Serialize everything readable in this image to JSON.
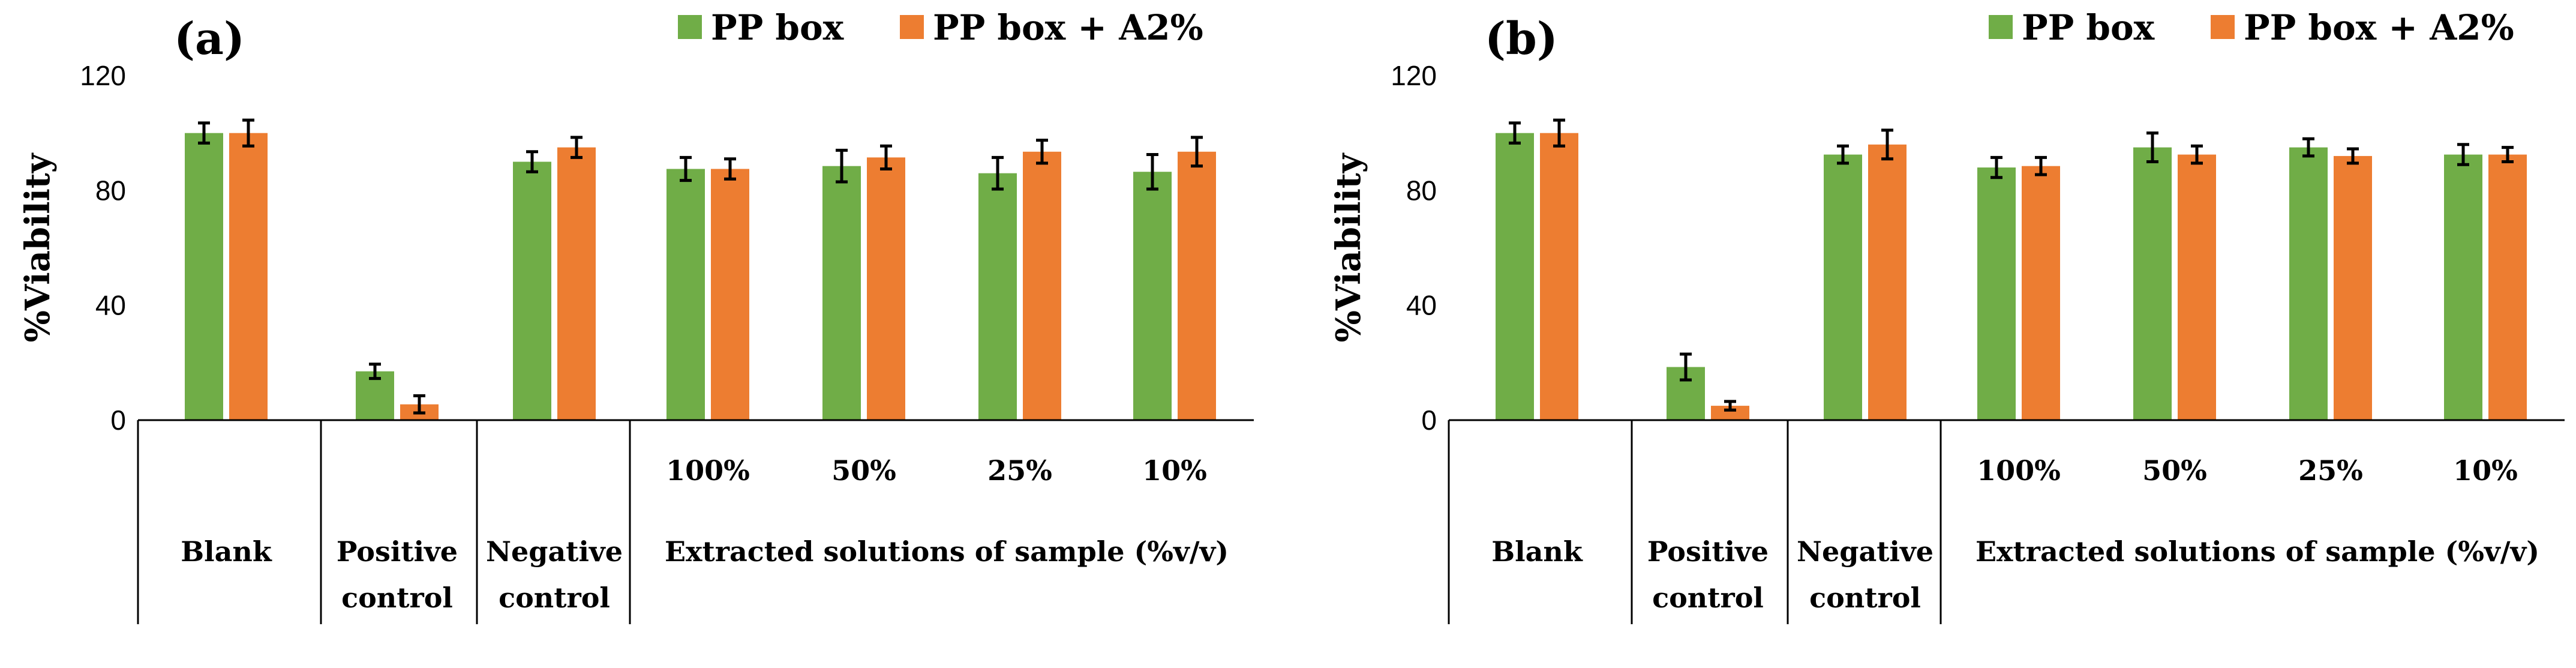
{
  "colors": {
    "series1": "#70AD47",
    "series2": "#ED7D31"
  },
  "legend": [
    "PP box",
    "PP box + A2%"
  ],
  "chart_data": [
    {
      "type": "bar",
      "title": "(a)",
      "ylabel": "%Viability",
      "xlabel": "",
      "ylim": [
        0,
        120
      ],
      "yticks": [
        "0",
        "40",
        "80",
        "120"
      ],
      "categories": [
        "Blank",
        "Positive control",
        "Negative control",
        "100%",
        "50%",
        "25%",
        "10%"
      ],
      "group_labels": {
        "blank": "Blank",
        "positive_line1": "Positive",
        "positive_line2": "control",
        "negative_line1": "Negative",
        "negative_line2": "control",
        "extracted": "Extracted solutions of sample (%v/v)"
      },
      "series": [
        {
          "name": "PP box",
          "values": [
            100,
            17,
            90,
            87.5,
            88.5,
            86,
            86.5
          ],
          "errors": [
            3.5,
            2.5,
            3.5,
            4,
            5.5,
            5.5,
            6
          ]
        },
        {
          "name": "PP box + A2%",
          "values": [
            100,
            5.5,
            95,
            87.5,
            91.5,
            93.5,
            93.5
          ],
          "errors": [
            4.5,
            3,
            3.5,
            3.5,
            4,
            4,
            5
          ]
        }
      ]
    },
    {
      "type": "bar",
      "title": "(b)",
      "ylabel": "%Viability",
      "xlabel": "",
      "ylim": [
        0,
        120
      ],
      "yticks": [
        "0",
        "40",
        "80",
        "120"
      ],
      "categories": [
        "Blank",
        "Positive control",
        "Negative control",
        "100%",
        "50%",
        "25%",
        "10%"
      ],
      "group_labels": {
        "blank": "Blank",
        "positive_line1": "Positive",
        "positive_line2": "control",
        "negative_line1": "Negative",
        "negative_line2": "control",
        "extracted": "Extracted solutions of sample (%v/v)"
      },
      "series": [
        {
          "name": "PP box",
          "values": [
            100,
            18.5,
            92.5,
            88,
            95,
            95,
            92.5
          ],
          "errors": [
            3.5,
            4.5,
            3,
            3.5,
            5,
            3,
            3.5
          ]
        },
        {
          "name": "PP box + A2%",
          "values": [
            100,
            5,
            96,
            88.5,
            92.5,
            92,
            92.5
          ],
          "errors": [
            4.5,
            1.5,
            5,
            3,
            3,
            2.5,
            2.5
          ]
        }
      ]
    }
  ]
}
